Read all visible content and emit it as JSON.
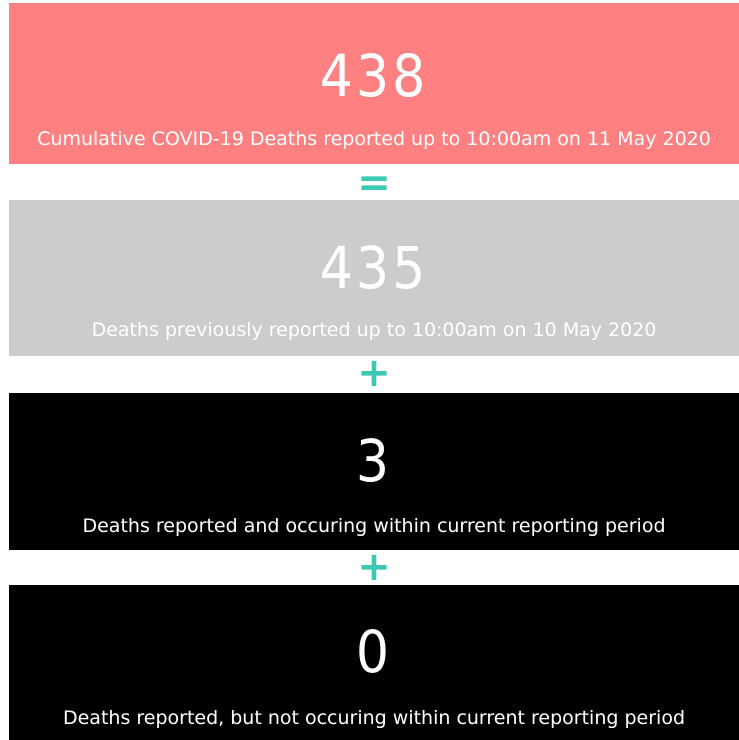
{
  "cards": [
    {
      "value": 438,
      "label": "Cumulative COVID-19 Deaths reported up to 10:00am on 11 May 2020"
    },
    {
      "value": 435,
      "label": "Deaths previously reported up to 10:00am on 10 May 2020"
    },
    {
      "value": 3,
      "label": "Deaths reported and occuring within current reporting period"
    },
    {
      "value": 0,
      "label": "Deaths reported, but not occuring within current reporting period"
    }
  ],
  "operators": [
    "=",
    "+",
    "+"
  ]
}
